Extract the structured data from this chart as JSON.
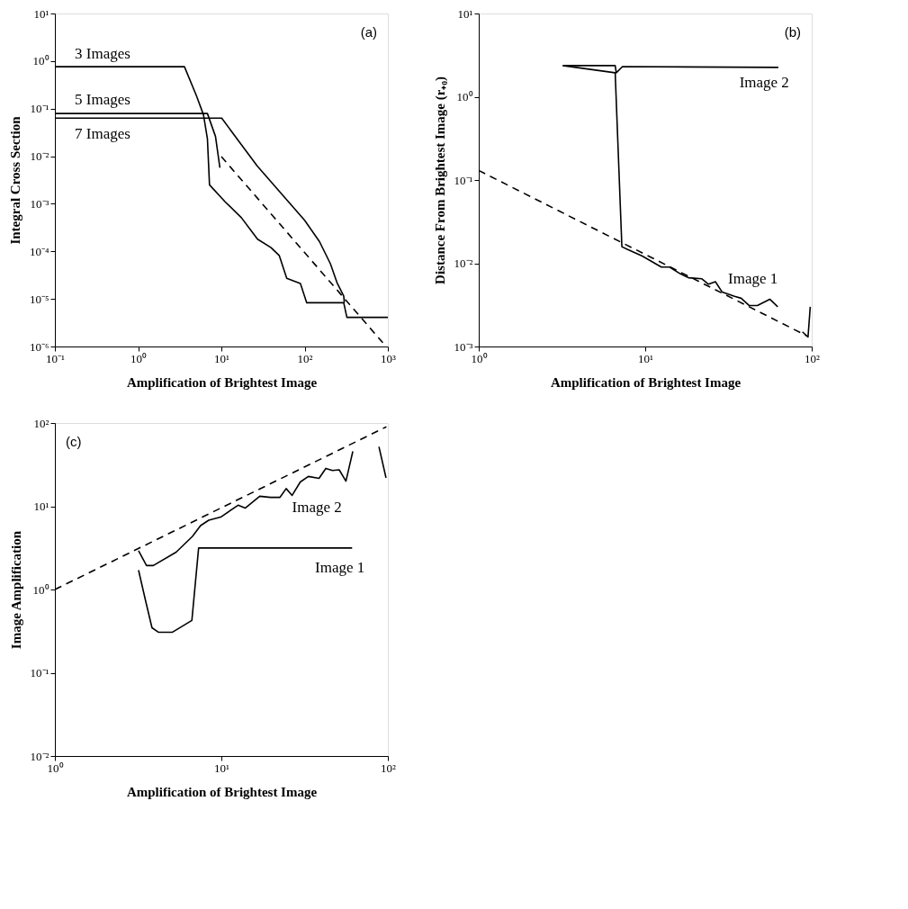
{
  "chart_data": [
    {
      "type": "line",
      "xlabel": "Amplification of Brightest Image",
      "ylabel": "Integral Cross Section",
      "annotations": [
        "(a)"
      ],
      "log": "xy",
      "grid": false,
      "legend": false,
      "line_style": "solid",
      "xlim": [
        0.1,
        1000
      ],
      "xticks": [
        {
          "value": 0.1,
          "label": "10⁻¹"
        },
        {
          "value": 1,
          "label": "10⁰"
        },
        {
          "value": 10,
          "label": "10¹"
        },
        {
          "value": 100,
          "label": "10²"
        },
        {
          "value": 1000,
          "label": "10³"
        }
      ],
      "ylim": [
        1e-06,
        10
      ],
      "yticks": [
        {
          "value": 1e-06,
          "label": "10⁻⁶"
        },
        {
          "value": 1e-05,
          "label": "10⁻⁵"
        },
        {
          "value": 0.0001,
          "label": "10⁻⁴"
        },
        {
          "value": 0.001,
          "label": "10⁻³"
        },
        {
          "value": 0.01,
          "label": "10⁻²"
        },
        {
          "value": 0.1,
          "label": "10⁻¹"
        },
        {
          "value": 1,
          "label": "10⁰"
        },
        {
          "value": 10,
          "label": "10¹"
        }
      ],
      "series": [
        {
          "name": "3 Images",
          "color": "#000000",
          "x": [
            0.1,
            3.6,
            5.0,
            6.1,
            6.8,
            7.2,
            11.1,
            17.4,
            27.2,
            39.5,
            49.5,
            61,
            89,
            106,
            295,
            322,
            1000
          ],
          "values": [
            0.76,
            0.76,
            0.19,
            0.074,
            0.023,
            0.0025,
            0.0011,
            0.00051,
            0.00018,
            0.00012,
            8.2e-05,
            2.7e-05,
            2.1e-05,
            8.3e-06,
            8.3e-06,
            4.1e-06,
            4.1e-06
          ]
        },
        {
          "name": "5 Images",
          "color": "#000000",
          "x": [
            0.1,
            6.8,
            8.5,
            9.6
          ],
          "values": [
            0.079,
            0.079,
            0.026,
            0.0057
          ]
        },
        {
          "name": "7 Images",
          "color": "#000000",
          "x": [
            0.1,
            10.1,
            27,
            100,
            151,
            204,
            245,
            295,
            300
          ],
          "values": [
            0.063,
            0.063,
            0.0062,
            0.00045,
            0.00016,
            5.5e-05,
            2.2e-05,
            1.15e-05,
            8.3e-06
          ]
        },
        {
          "color": "#000000",
          "line_style": "dashed",
          "x": [
            10,
            870
          ],
          "values": [
            0.0098,
            1.2e-06
          ]
        }
      ]
    },
    {
      "type": "line",
      "xlabel": "Amplification of Brightest Image",
      "ylabel": "Distance From Brightest Image (r₊₀)",
      "annotations": [
        "(b)"
      ],
      "log": "xy",
      "grid": false,
      "legend": false,
      "line_style": "solid",
      "xlim": [
        1,
        100
      ],
      "xticks": [
        {
          "value": 1,
          "label": "10⁰"
        },
        {
          "value": 10,
          "label": "10¹"
        },
        {
          "value": 100,
          "label": "10²"
        }
      ],
      "ylim": [
        0.001,
        10
      ],
      "yticks": [
        {
          "value": 0.001,
          "label": "10⁻³"
        },
        {
          "value": 0.01,
          "label": "10⁻²"
        },
        {
          "value": 0.1,
          "label": "10⁻¹"
        },
        {
          "value": 1,
          "label": "10⁰"
        },
        {
          "value": 10,
          "label": "10¹"
        }
      ],
      "series": [
        {
          "name": "Image 2",
          "color": "#000000",
          "x": [
            3.2,
            6.6,
            6.7,
            7.3,
            63
          ],
          "values": [
            2.37,
            2.37,
            1.94,
            2.3,
            2.25
          ]
        },
        {
          "name": "Image 1",
          "color": "#000000",
          "x": [
            3.2,
            6.6,
            7.24,
            7.8,
            9.6,
            12.5,
            14,
            16.2,
            18.2,
            21.9,
            24,
            26.4,
            29,
            34.4,
            37.7,
            42.2,
            47.2,
            56,
            62.5,
            80,
            88,
            95,
            98
          ],
          "values": [
            2.37,
            1.94,
            0.0158,
            0.0147,
            0.0122,
            0.009,
            0.009,
            0.0075,
            0.0067,
            0.0065,
            0.0056,
            0.006,
            0.0045,
            0.004,
            0.0038,
            0.0031,
            0.0031,
            0.0037,
            0.003,
            null,
            0.0015,
            0.0013,
            0.003
          ]
        },
        {
          "color": "#000000",
          "line_style": "dashed",
          "x": [
            1,
            93
          ],
          "values": [
            0.13,
            0.00135
          ]
        }
      ]
    },
    {
      "type": "line",
      "xlabel": "Amplification of Brightest Image",
      "ylabel": "Image Amplification",
      "annotations": [
        "(c)"
      ],
      "log": "xy",
      "grid": false,
      "legend": false,
      "line_style": "solid",
      "xlim": [
        1,
        100
      ],
      "xticks": [
        {
          "value": 1,
          "label": "10⁰"
        },
        {
          "value": 10,
          "label": "10¹"
        },
        {
          "value": 100,
          "label": "10²"
        }
      ],
      "ylim": [
        0.01,
        100
      ],
      "yticks": [
        {
          "value": 0.01,
          "label": "10⁻²"
        },
        {
          "value": 0.1,
          "label": "10⁻¹"
        },
        {
          "value": 1,
          "label": "10⁰"
        },
        {
          "value": 10,
          "label": "10¹"
        },
        {
          "value": 100,
          "label": "10²"
        }
      ],
      "series": [
        {
          "name": "Image 2",
          "color": "#000000",
          "x": [
            3.18,
            3.55,
            3.9,
            5.35,
            6.7,
            7.5,
            8.4,
            9.9,
            12.6,
            13.9,
            17,
            19.7,
            22.5,
            24.5,
            26.6,
            29.8,
            33.3,
            38.6,
            42.4,
            46.5,
            51,
            56,
            61.6,
            75,
            88.4,
            97.5
          ],
          "values": [
            2.92,
            1.94,
            1.94,
            2.81,
            4.34,
            5.85,
            6.8,
            7.4,
            10.3,
            9.5,
            13.2,
            12.8,
            12.8,
            16.3,
            13.5,
            19.6,
            22.8,
            21.6,
            28.5,
            26.9,
            27.4,
            20,
            45.6,
            null,
            51.9,
            21.9
          ]
        },
        {
          "name": "Image 1",
          "color": "#000000",
          "x": [
            3.18,
            3.49,
            3.83,
            4.2,
            5.06,
            6.65,
            7.3,
            61
          ],
          "values": [
            1.71,
            0.76,
            0.347,
            0.306,
            0.306,
            0.425,
            3.15,
            3.15
          ]
        },
        {
          "color": "#000000",
          "line_style": "dashed",
          "x": [
            1,
            98
          ],
          "values": [
            1.0,
            90
          ]
        }
      ]
    }
  ]
}
